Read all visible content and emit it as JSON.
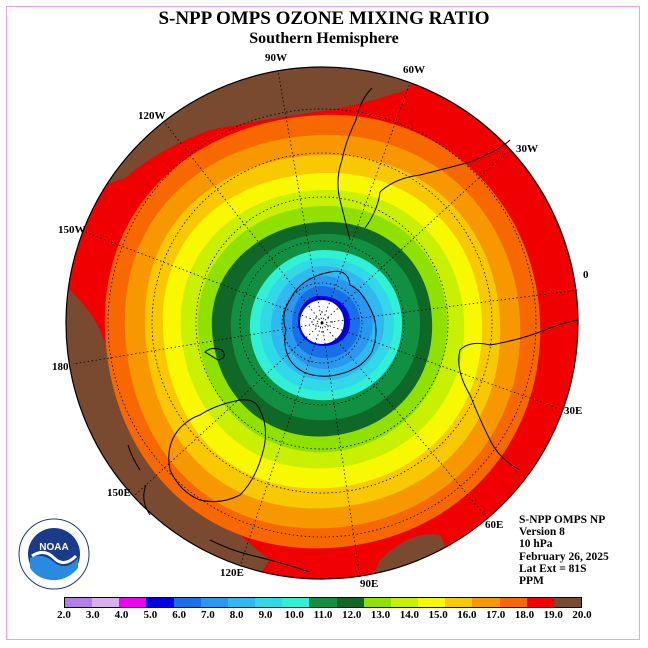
{
  "title": "S-NPP OMPS OZONE MIXING RATIO",
  "subtitle": "Southern Hemisphere",
  "longitude_labels": {
    "lon_90w": "90W",
    "lon_60w": "60W",
    "lon_30w": "30W",
    "lon_0": "0",
    "lon_30e": "30E",
    "lon_60e": "60E",
    "lon_90e": "90E",
    "lon_120e": "120E",
    "lon_150e": "150E",
    "lon_180": "180",
    "lon_150w": "150W",
    "lon_120w": "120W"
  },
  "info": {
    "instrument": "S-NPP OMPS NP",
    "version": "Version 8",
    "pressure": "10 hPa",
    "date": "February 26, 2025",
    "lat_ext": "Lat Ext = 81S",
    "units": "PPM"
  },
  "logo": {
    "text": "NOAA",
    "icon": "noaa-logo-icon"
  },
  "colorbar": {
    "ticks": [
      "2.0",
      "3.0",
      "4.0",
      "5.0",
      "6.0",
      "7.0",
      "8.0",
      "9.0",
      "10.0",
      "11.0",
      "12.0",
      "13.0",
      "14.0",
      "15.0",
      "16.0",
      "17.0",
      "18.0",
      "19.0",
      "20.0"
    ],
    "colors": [
      "#b080e8",
      "#d8b0f0",
      "#f000f0",
      "#0000e0",
      "#1870e8",
      "#2898f0",
      "#30b8f0",
      "#30d8e8",
      "#30f0d8",
      "#109040",
      "#106828",
      "#90e000",
      "#c8f000",
      "#f8f800",
      "#f8c800",
      "#f89800",
      "#f86800",
      "#f00000",
      "#7a4a30"
    ]
  },
  "map_colors": {
    "outer": "#f00000",
    "brown": "#7a4a30",
    "ring_18": "#f86800",
    "ring_17": "#f89800",
    "ring_16": "#f8c800",
    "ring_15": "#f8f800",
    "ring_14": "#c8f000",
    "ring_13": "#90e000",
    "ring_12": "#106828",
    "ring_11": "#109040",
    "ring_10": "#30f0d8",
    "ring_9": "#30d8e8",
    "ring_8": "#30b8f0",
    "ring_7": "#2898f0",
    "ring_6": "#1870e8",
    "ring_5": "#0000e0",
    "pole": "#ffffff"
  }
}
